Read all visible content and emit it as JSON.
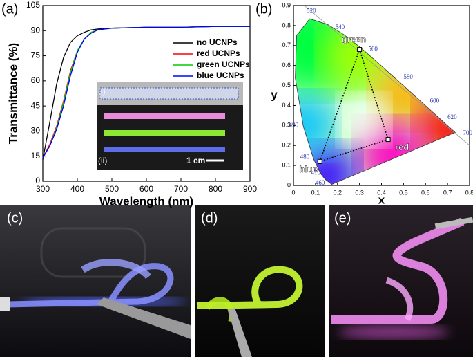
{
  "chart_data": [
    {
      "type": "line",
      "label": "(a)",
      "x_label": "Wavelength (nm)",
      "y_label": "Transmittance (%)",
      "x": [
        300,
        320,
        340,
        360,
        380,
        400,
        420,
        440,
        460,
        480,
        500,
        600,
        700,
        800,
        900
      ],
      "series": [
        {
          "name": "no UCNPs",
          "color": "#000000",
          "values": [
            13,
            35,
            58,
            74,
            83,
            87,
            89,
            90.5,
            91,
            91.3,
            91.5,
            92,
            92,
            92.5,
            92.5
          ]
        },
        {
          "name": "red UCNPs",
          "color": "#ff0000",
          "values": [
            14,
            22,
            33,
            48,
            66,
            78,
            85,
            89,
            90.5,
            91,
            91.5,
            92,
            92,
            92.5,
            92.5
          ]
        },
        {
          "name": "green UCNPs",
          "color": "#00cc00",
          "values": [
            14,
            21,
            32,
            47,
            65,
            78,
            85,
            89,
            90.5,
            91,
            91.5,
            92,
            92,
            92.5,
            92.5
          ]
        },
        {
          "name": "blue UCNPs",
          "color": "#0000ff",
          "values": [
            14,
            21,
            31,
            45,
            63,
            77,
            85,
            88.5,
            90.5,
            91,
            91.5,
            92,
            92,
            92.5,
            92.5
          ]
        }
      ],
      "xlim": [
        300,
        900
      ],
      "xticks": [
        300,
        400,
        500,
        600,
        700,
        800,
        900
      ],
      "ylim": [
        0,
        105
      ],
      "yticks": [
        0,
        15,
        30,
        45,
        60,
        75,
        90,
        105
      ],
      "legend": "upper right",
      "annotations": [
        "(i)",
        "(ii)",
        "1 cm"
      ]
    },
    {
      "type": "scatter",
      "label": "(b)",
      "x_label": "x",
      "y_label": "y",
      "points": [
        {
          "name": "green",
          "x": 0.3,
          "y": 0.68
        },
        {
          "name": "red",
          "x": 0.43,
          "y": 0.23
        },
        {
          "name": "blue",
          "x": 0.12,
          "y": 0.12
        }
      ],
      "xlim": [
        0,
        0.8
      ],
      "xticks": [
        0,
        0.1,
        0.2,
        0.3,
        0.4,
        0.5,
        0.6,
        0.7,
        0.8
      ],
      "ylim": [
        0,
        0.9
      ],
      "yticks": [
        0,
        0.1,
        0.2,
        0.3,
        0.4,
        0.5,
        0.6,
        0.7,
        0.8,
        0.9
      ],
      "wavelength_labels": [
        "520",
        "540",
        "560",
        "580",
        "600",
        "620",
        "700",
        "490",
        "480",
        "470",
        "460"
      ]
    }
  ],
  "photo_labels": [
    "(c)",
    "(d)",
    "(e)"
  ]
}
